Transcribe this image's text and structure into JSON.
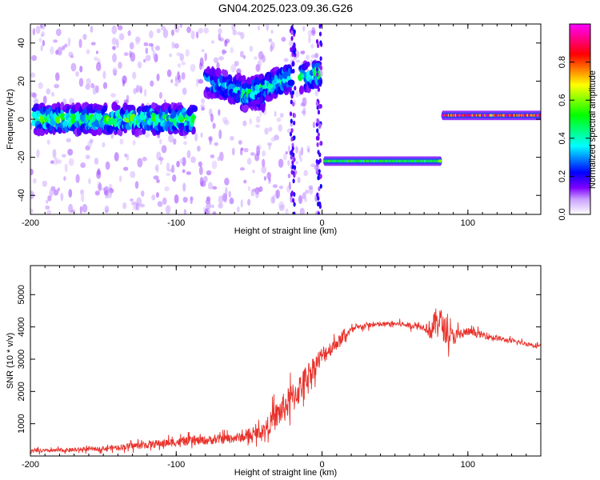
{
  "title": "GN04.2025.023.09.36.G26",
  "chart_data": [
    {
      "type": "heatmap",
      "xlabel": "Height of straight line (km)",
      "ylabel": "Frequency (Hz)",
      "xlim": [
        -200,
        150
      ],
      "ylim": [
        -50,
        50
      ],
      "x_ticks": [
        -200,
        -100,
        0,
        100
      ],
      "y_ticks": [
        -40,
        -20,
        0,
        20,
        40
      ],
      "colorbar": {
        "label": "Normalized spectral amplitude",
        "range": [
          0.0,
          1.0
        ],
        "ticks": [
          0.0,
          0.2,
          0.4,
          0.6,
          0.8
        ],
        "colors": [
          "#ffffff",
          "#7f00ff",
          "#0000ff",
          "#00ffff",
          "#00ff00",
          "#ffff00",
          "#ff0000",
          "#ff00ff"
        ]
      },
      "dominant_frequency_segments": [
        {
          "x_start": -197,
          "x_end": -88,
          "freq_start": 0,
          "freq_end": 0,
          "amplitude": 0.5
        },
        {
          "x_start": -80,
          "x_end": -40,
          "freq_start": 20,
          "freq_end": 12,
          "amplitude": 0.3
        },
        {
          "x_start": -55,
          "x_end": -22,
          "freq_start": 12,
          "freq_end": 22,
          "amplitude": 0.45
        },
        {
          "x_start": -14,
          "x_end": -2,
          "freq_start": 22,
          "freq_end": 24,
          "amplitude": 0.45
        },
        {
          "x_start": 2,
          "x_end": 81,
          "freq_start": -22,
          "freq_end": -22,
          "amplitude": 0.6
        },
        {
          "x_start": 83,
          "x_end": 150,
          "freq_start": 2,
          "freq_end": 2,
          "amplitude": 1.0
        }
      ]
    },
    {
      "type": "line",
      "xlabel": "Height of straight line (km)",
      "ylabel": "SNR (10 * v/v)",
      "xlim": [
        -200,
        150
      ],
      "ylim": [
        0,
        5900
      ],
      "x_ticks": [
        -200,
        -100,
        0,
        100
      ],
      "y_ticks": [
        1000,
        2000,
        3000,
        4000,
        5000
      ],
      "color": "#e8312a",
      "series": [
        {
          "x": [
            -200,
            -175,
            -150,
            -125,
            -100,
            -75,
            -50,
            -40,
            -30,
            -20,
            -15,
            -10,
            0,
            10,
            20,
            30,
            50,
            70,
            75,
            80,
            85,
            90,
            100,
            125,
            150
          ],
          "y": [
            150,
            180,
            230,
            330,
            430,
            500,
            600,
            800,
            1300,
            1800,
            2100,
            2500,
            3100,
            3500,
            3900,
            4050,
            4100,
            4000,
            3900,
            4300,
            3800,
            3700,
            3850,
            3600,
            3400
          ],
          "spread": [
            110,
            120,
            130,
            230,
            260,
            280,
            300,
            450,
            900,
            1000,
            900,
            800,
            600,
            400,
            200,
            180,
            150,
            200,
            700,
            1000,
            700,
            500,
            250,
            150,
            130
          ]
        }
      ]
    }
  ]
}
